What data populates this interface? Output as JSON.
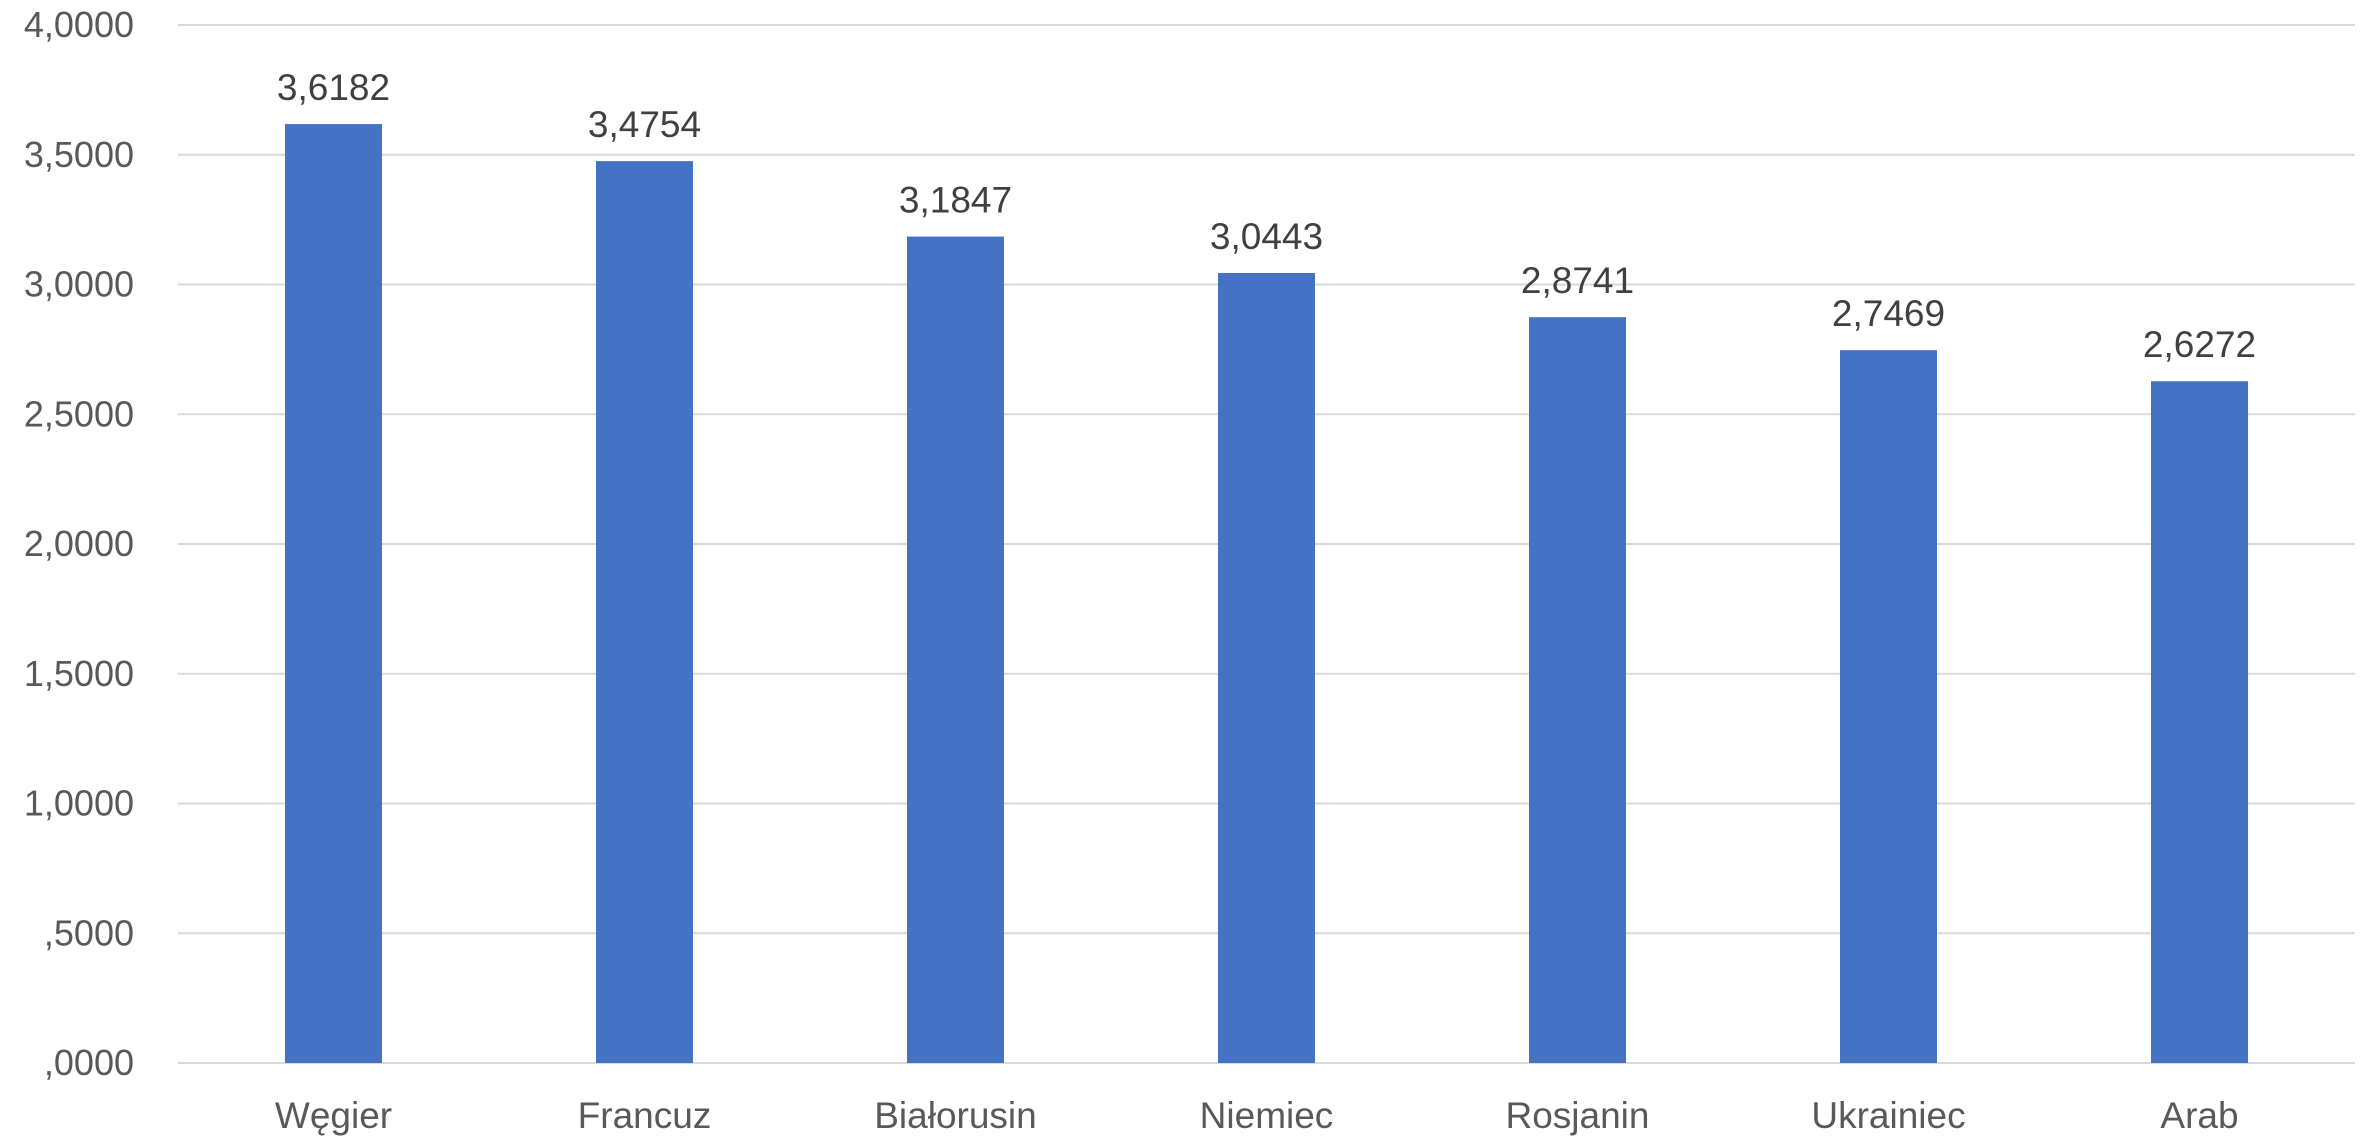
{
  "chart_data": {
    "type": "bar",
    "categories": [
      "Węgier",
      "Francuz",
      "Białorusin",
      "Niemiec",
      "Rosjanin",
      "Ukrainiec",
      "Arab"
    ],
    "values": [
      3.6182,
      3.4754,
      3.1847,
      3.0443,
      2.8741,
      2.7469,
      2.6272
    ],
    "value_labels": [
      "3,6182",
      "3,4754",
      "3,1847",
      "3,0443",
      "2,8741",
      "2,7469",
      "2,6272"
    ],
    "ylim": [
      0,
      4
    ],
    "y_ticks": [
      0,
      0.5,
      1,
      1.5,
      2,
      2.5,
      3,
      3.5,
      4
    ],
    "y_tick_labels": [
      ",0000",
      ",5000",
      "1,0000",
      "1,5000",
      "2,0000",
      "2,5000",
      "3,0000",
      "3,5000",
      "4,0000"
    ],
    "title": "",
    "xlabel": "",
    "ylabel": "",
    "grid": true,
    "legend": "none",
    "colors": {
      "bar": "#4472C4",
      "grid": "#D9D9D9",
      "text": "#595959"
    }
  }
}
